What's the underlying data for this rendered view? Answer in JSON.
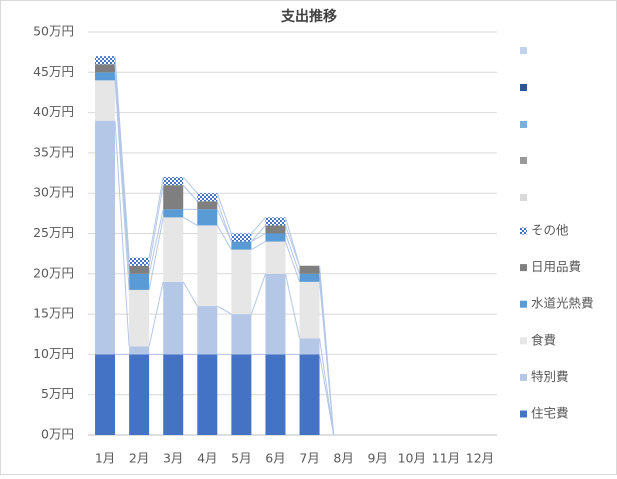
{
  "chart_data": {
    "type": "stacked_bar",
    "title": "支出推移",
    "categories": [
      "1月",
      "2月",
      "3月",
      "4月",
      "5月",
      "6月",
      "7月",
      "8月",
      "9月",
      "10月",
      "11月",
      "12月"
    ],
    "series": [
      {
        "name": "住宅費",
        "color": "#4472c4",
        "values": [
          10,
          10,
          10,
          10,
          10,
          10,
          10,
          0,
          null,
          null,
          null,
          null
        ]
      },
      {
        "name": "特別費",
        "color": "#b4c7e7",
        "values": [
          29,
          1,
          9,
          6,
          5,
          10,
          2,
          0,
          null,
          null,
          null,
          null
        ]
      },
      {
        "name": "食費",
        "color": "#e7e6e6",
        "values": [
          5,
          7,
          8,
          10,
          8,
          4,
          7,
          0,
          null,
          null,
          null,
          null
        ]
      },
      {
        "name": "水道光熱費",
        "color": "#5b9bd5",
        "values": [
          1,
          2,
          1,
          2,
          1,
          1,
          1,
          0,
          null,
          null,
          null,
          null
        ]
      },
      {
        "name": "日用品費",
        "color": "#7f7f7f",
        "values": [
          1,
          1,
          3,
          1,
          0,
          1,
          1,
          0,
          null,
          null,
          null,
          null
        ]
      },
      {
        "name": "その他",
        "color": "#4472c4",
        "pattern": "checker",
        "values": [
          1,
          1,
          1,
          1,
          1,
          1,
          0,
          0,
          null,
          null,
          null,
          null
        ]
      }
    ],
    "ylim": [
      0,
      50
    ],
    "yticks": [
      {
        "value": 0,
        "label": "0万円"
      },
      {
        "value": 5,
        "label": "5万円"
      },
      {
        "value": 10,
        "label": "10万円"
      },
      {
        "value": 15,
        "label": "15万円"
      },
      {
        "value": 20,
        "label": "20万円"
      },
      {
        "value": 25,
        "label": "25万円"
      },
      {
        "value": 30,
        "label": "30万円"
      },
      {
        "value": 35,
        "label": "35万円"
      },
      {
        "value": 40,
        "label": "40万円"
      },
      {
        "value": 45,
        "label": "45万円"
      },
      {
        "value": 50,
        "label": "50万円"
      }
    ],
    "grid": true,
    "legend": "right",
    "series_lines": true
  }
}
